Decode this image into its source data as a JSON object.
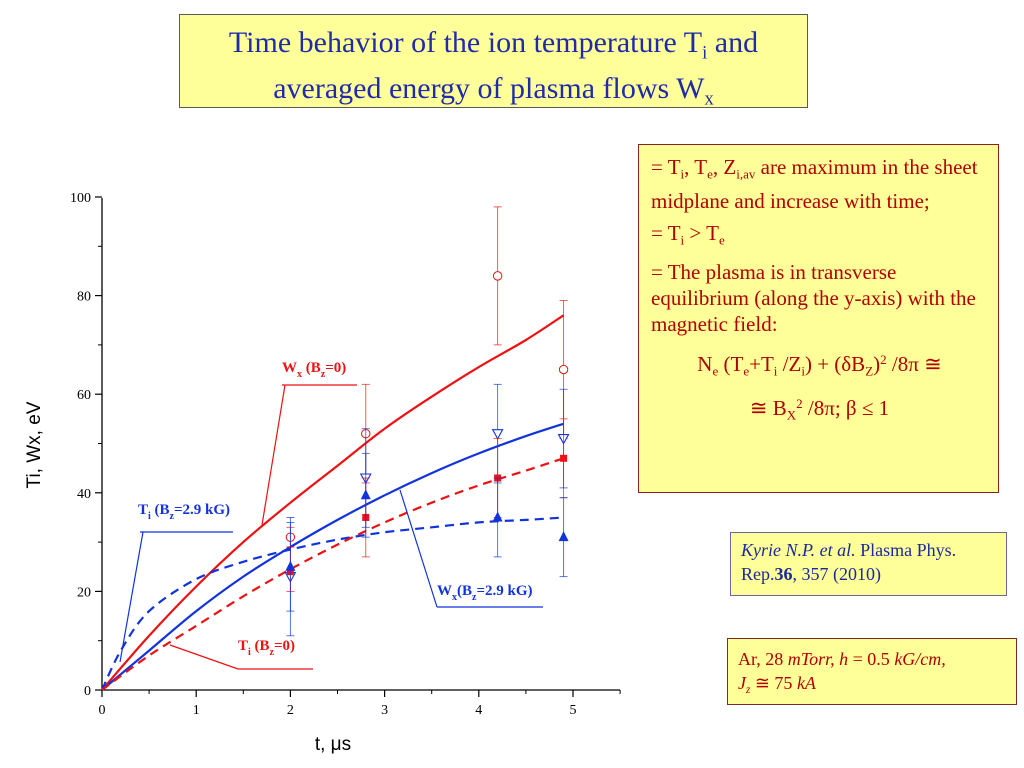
{
  "title": {
    "line1_prefix": "Time behavior of the ion temperature T",
    "line1_sub": "i",
    "line1_suffix": " and",
    "line2_prefix": "averaged energy of plasma flows W",
    "line2_sub": "x"
  },
  "info": {
    "item1": {
      "t1": "= T",
      "s1": "i",
      "t2": ", T",
      "s2": "e",
      "t3": ", Z",
      "s3": "i,av",
      "t4": " are maximum in the sheet midplane and increase with time;"
    },
    "item2": {
      "t1": "= T",
      "s1": "i",
      "t2": " > T",
      "s2": "e"
    },
    "item3": "= The plasma is in transverse equilibrium (along the y-axis) with the magnetic field:",
    "eq1": {
      "a": "N",
      "a_sub": "e",
      "b": " (T",
      "b_sub": "e",
      "c": "+T",
      "c_sub": "i",
      "d": " /Z",
      "d_sub": "i",
      "e": ") + (δB",
      "e_sub": "Z",
      "f": ")",
      "f_sup": "2",
      "g": " /8π ≅"
    },
    "eq2": {
      "a": "≅ B",
      "a_sub": "X",
      "a_sup": "2",
      "b": " /8π;   β ≤ 1"
    }
  },
  "reference": {
    "authors": "Kyrie N.P. et al.",
    "journal": " Plasma Phys. Rep.",
    "volume": "36",
    "pages": ", 357 (2010)"
  },
  "conditions": {
    "gas": "Ar, 28 ",
    "pressure_unit": "mTorr,",
    "h_part": " h",
    "h_value": " = 0.5 ",
    "h_unit": "kG/cm,",
    "j_sym": "J",
    "j_sub": "z",
    "j_rest": " ≅ 75 ",
    "j_unit": "kA"
  },
  "chart_data": {
    "type": "line",
    "xlabel": "t, μs",
    "ylabel": "Ti, Wx, eV",
    "xlim": [
      0,
      5.5
    ],
    "ylim": [
      0,
      100
    ],
    "x_ticks": [
      "0",
      "1",
      "2",
      "3",
      "4",
      "5"
    ],
    "y_ticks": [
      "0",
      "20",
      "40",
      "60",
      "80",
      "100"
    ],
    "colors": {
      "red": "#ee1111",
      "blue": "#1133dd"
    },
    "series": [
      {
        "name": "Wx (Bz=0)",
        "style": "solid",
        "color": "red",
        "x": [
          0,
          0.5,
          1,
          1.5,
          2,
          2.5,
          3,
          3.5,
          4,
          4.5,
          4.9
        ],
        "y": [
          0,
          11,
          21,
          30,
          38,
          45.5,
          53,
          59.5,
          65.5,
          71,
          76
        ]
      },
      {
        "name": "Wx(Bz=2.9 kG)",
        "style": "solid",
        "color": "blue",
        "x": [
          0,
          0.5,
          1,
          1.5,
          2,
          2.5,
          3,
          3.5,
          4,
          4.5,
          4.9
        ],
        "y": [
          0,
          8,
          16,
          23,
          29,
          34.5,
          39.5,
          44,
          48,
          51.5,
          54
        ]
      },
      {
        "name": "Ti (Bz=2.9 kG)",
        "style": "dashed",
        "color": "blue",
        "x": [
          0,
          0.2,
          0.5,
          1,
          1.5,
          2,
          2.5,
          3,
          3.5,
          4,
          4.5,
          4.9
        ],
        "y": [
          0,
          8,
          16,
          22.5,
          26,
          28.5,
          30.5,
          32,
          33,
          34,
          34.5,
          35
        ]
      },
      {
        "name": "Ti (Bz=0)",
        "style": "dashed",
        "color": "red",
        "x": [
          0,
          0.5,
          1,
          1.5,
          2,
          2.5,
          3,
          3.5,
          4,
          4.5,
          4.9
        ],
        "y": [
          0,
          7,
          13,
          19,
          24.5,
          29.5,
          34,
          38,
          41.5,
          44.5,
          47
        ]
      }
    ],
    "points": [
      {
        "marker": "open-circle",
        "color": "red",
        "data": [
          {
            "x": 2,
            "y": 31,
            "err": [
              29,
              33
            ]
          },
          {
            "x": 2.8,
            "y": 52,
            "err": [
              42,
              62
            ]
          },
          {
            "x": 4.2,
            "y": 84,
            "err": [
              70,
              98
            ]
          },
          {
            "x": 4.9,
            "y": 65,
            "err": [
              51,
              79
            ]
          }
        ]
      },
      {
        "marker": "open-triangle-down",
        "color": "blue",
        "data": [
          {
            "x": 2,
            "y": 23,
            "err": [
              11,
              35
            ]
          },
          {
            "x": 2.8,
            "y": 43,
            "err": [
              33,
              53
            ]
          },
          {
            "x": 4.2,
            "y": 52,
            "err": [
              42,
              62
            ]
          },
          {
            "x": 4.9,
            "y": 51,
            "err": [
              41,
              61
            ]
          }
        ]
      },
      {
        "marker": "filled-square",
        "color": "red",
        "data": [
          {
            "x": 2,
            "y": 24,
            "err": [
              20,
              29
            ]
          },
          {
            "x": 2.8,
            "y": 35,
            "err": [
              27,
              43
            ]
          },
          {
            "x": 4.2,
            "y": 43,
            "err": [
              35,
              51
            ]
          },
          {
            "x": 4.9,
            "y": 47,
            "err": [
              39,
              55
            ]
          }
        ]
      },
      {
        "marker": "filled-triangle-up",
        "color": "blue",
        "data": [
          {
            "x": 2,
            "y": 25,
            "err": [
              16,
              34
            ]
          },
          {
            "x": 2.8,
            "y": 39.5,
            "err": [
              31,
              48
            ]
          },
          {
            "x": 4.2,
            "y": 35,
            "err": [
              27,
              43
            ]
          },
          {
            "x": 4.9,
            "y": 31,
            "err": [
              23,
              39
            ]
          }
        ]
      }
    ],
    "annotations": [
      {
        "id": "wx0",
        "text": "W",
        "sub": "x",
        "mid": " (B",
        "sub2": "z",
        "tail": "=0)",
        "color": "red"
      },
      {
        "id": "ti29",
        "text": "T",
        "sub": "i",
        "mid": " (B",
        "sub2": "z",
        "tail": "=2.9 kG)",
        "color": "blue"
      },
      {
        "id": "wx29",
        "text": "W",
        "sub": "x",
        "mid": "(B",
        "sub2": "z",
        "tail": "=2.9 kG)",
        "color": "blue"
      },
      {
        "id": "ti0",
        "text": "T",
        "sub": "i",
        "mid": " (B",
        "sub2": "z",
        "tail": "=0)",
        "color": "red"
      }
    ]
  }
}
